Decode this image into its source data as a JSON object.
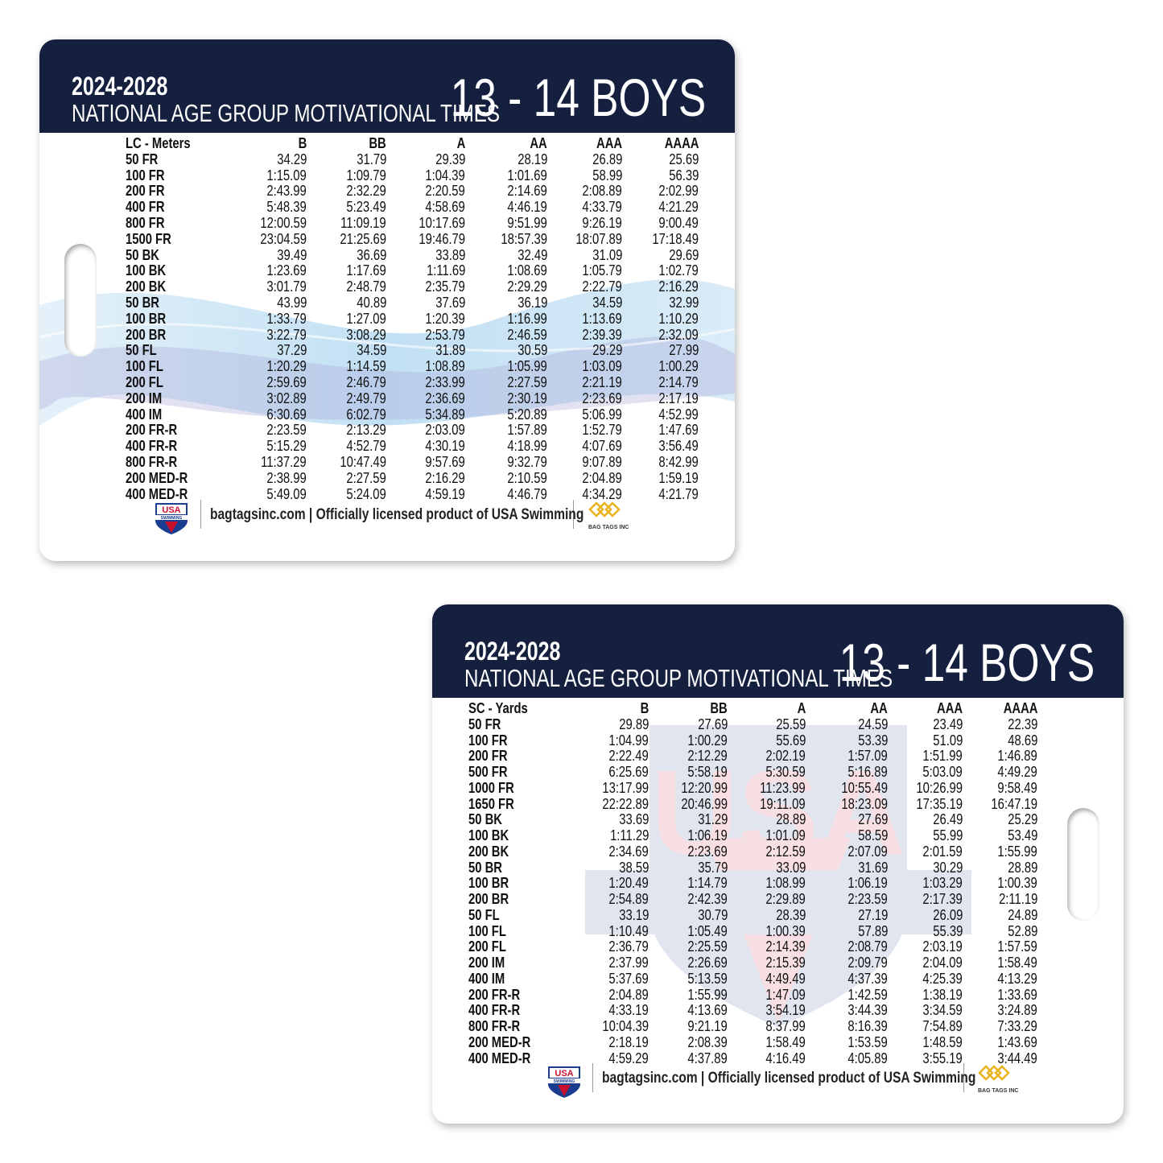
{
  "colors": {
    "header": "#15203f",
    "accent_gold": "#e9b21c",
    "usa_red": "#c8102e",
    "usa_blue": "#1b3d8f"
  },
  "cards": [
    {
      "years": "2024-2028",
      "subtitle": "NATIONAL AGE GROUP MOTIVATIONAL TIMES",
      "group": "13 - 14 BOYS",
      "course": "LC - Meters",
      "columns": [
        "B",
        "BB",
        "A",
        "AA",
        "AAA",
        "AAAA"
      ],
      "rows": [
        [
          "50 FR",
          "34.29",
          "31.79",
          "29.39",
          "28.19",
          "26.89",
          "25.69"
        ],
        [
          "100 FR",
          "1:15.09",
          "1:09.79",
          "1:04.39",
          "1:01.69",
          "58.99",
          "56.39"
        ],
        [
          "200 FR",
          "2:43.99",
          "2:32.29",
          "2:20.59",
          "2:14.69",
          "2:08.89",
          "2:02.99"
        ],
        [
          "400 FR",
          "5:48.39",
          "5:23.49",
          "4:58.69",
          "4:46.19",
          "4:33.79",
          "4:21.29"
        ],
        [
          "800 FR",
          "12:00.59",
          "11:09.19",
          "10:17.69",
          "9:51.99",
          "9:26.19",
          "9:00.49"
        ],
        [
          "1500 FR",
          "23:04.59",
          "21:25.69",
          "19:46.79",
          "18:57.39",
          "18:07.89",
          "17:18.49"
        ],
        [
          "50 BK",
          "39.49",
          "36.69",
          "33.89",
          "32.49",
          "31.09",
          "29.69"
        ],
        [
          "100 BK",
          "1:23.69",
          "1:17.69",
          "1:11.69",
          "1:08.69",
          "1:05.79",
          "1:02.79"
        ],
        [
          "200 BK",
          "3:01.79",
          "2:48.79",
          "2:35.79",
          "2:29.29",
          "2:22.79",
          "2:16.29"
        ],
        [
          "50 BR",
          "43.99",
          "40.89",
          "37.69",
          "36.19",
          "34.59",
          "32.99"
        ],
        [
          "100 BR",
          "1:33.79",
          "1:27.09",
          "1:20.39",
          "1:16.99",
          "1:13.69",
          "1:10.29"
        ],
        [
          "200 BR",
          "3:22.79",
          "3:08.29",
          "2:53.79",
          "2:46.59",
          "2:39.39",
          "2:32.09"
        ],
        [
          "50 FL",
          "37.29",
          "34.59",
          "31.89",
          "30.59",
          "29.29",
          "27.99"
        ],
        [
          "100 FL",
          "1:20.29",
          "1:14.59",
          "1:08.89",
          "1:05.99",
          "1:03.09",
          "1:00.29"
        ],
        [
          "200 FL",
          "2:59.69",
          "2:46.79",
          "2:33.99",
          "2:27.59",
          "2:21.19",
          "2:14.79"
        ],
        [
          "200 IM",
          "3:02.89",
          "2:49.79",
          "2:36.69",
          "2:30.19",
          "2:23.69",
          "2:17.19"
        ],
        [
          "400 IM",
          "6:30.69",
          "6:02.79",
          "5:34.89",
          "5:20.89",
          "5:06.99",
          "4:52.99"
        ],
        [
          "200 FR-R",
          "2:23.59",
          "2:13.29",
          "2:03.09",
          "1:57.89",
          "1:52.79",
          "1:47.69"
        ],
        [
          "400 FR-R",
          "5:15.29",
          "4:52.79",
          "4:30.19",
          "4:18.99",
          "4:07.69",
          "3:56.49"
        ],
        [
          "800 FR-R",
          "11:37.29",
          "10:47.49",
          "9:57.69",
          "9:32.79",
          "9:07.89",
          "8:42.99"
        ],
        [
          "200 MED-R",
          "2:38.99",
          "2:27.59",
          "2:16.29",
          "2:10.59",
          "2:04.89",
          "1:59.19"
        ],
        [
          "400 MED-R",
          "5:49.09",
          "5:24.09",
          "4:59.19",
          "4:46.79",
          "4:34.29",
          "4:21.79"
        ]
      ],
      "footer": "bagtagsinc.com | Officially licensed product of USA Swimming",
      "usa_logo_text": "USA SWIMMING",
      "brand_logo_text": "BAG TAGS INC"
    },
    {
      "years": "2024-2028",
      "subtitle": "NATIONAL AGE GROUP MOTIVATIONAL TIMES",
      "group": "13 - 14 BOYS",
      "course": "SC - Yards",
      "columns": [
        "B",
        "BB",
        "A",
        "AA",
        "AAA",
        "AAAA"
      ],
      "rows": [
        [
          "50 FR",
          "29.89",
          "27.69",
          "25.59",
          "24.59",
          "23.49",
          "22.39"
        ],
        [
          "100 FR",
          "1:04.99",
          "1:00.29",
          "55.69",
          "53.39",
          "51.09",
          "48.69"
        ],
        [
          "200 FR",
          "2:22.49",
          "2:12.29",
          "2:02.19",
          "1:57.09",
          "1:51.99",
          "1:46.89"
        ],
        [
          "500 FR",
          "6:25.69",
          "5:58.19",
          "5:30.59",
          "5:16.89",
          "5:03.09",
          "4:49.29"
        ],
        [
          "1000 FR",
          "13:17.99",
          "12:20.99",
          "11:23.99",
          "10:55.49",
          "10:26.99",
          "9:58.49"
        ],
        [
          "1650 FR",
          "22:22.89",
          "20:46.99",
          "19:11.09",
          "18:23.09",
          "17:35.19",
          "16:47.19"
        ],
        [
          "50 BK",
          "33.69",
          "31.29",
          "28.89",
          "27.69",
          "26.49",
          "25.29"
        ],
        [
          "100 BK",
          "1:11.29",
          "1:06.19",
          "1:01.09",
          "58.59",
          "55.99",
          "53.49"
        ],
        [
          "200 BK",
          "2:34.69",
          "2:23.69",
          "2:12.59",
          "2:07.09",
          "2:01.59",
          "1:55.99"
        ],
        [
          "50 BR",
          "38.59",
          "35.79",
          "33.09",
          "31.69",
          "30.29",
          "28.89"
        ],
        [
          "100 BR",
          "1:20.49",
          "1:14.79",
          "1:08.99",
          "1:06.19",
          "1:03.29",
          "1:00.39"
        ],
        [
          "200 BR",
          "2:54.89",
          "2:42.39",
          "2:29.89",
          "2:23.59",
          "2:17.39",
          "2:11.19"
        ],
        [
          "50 FL",
          "33.19",
          "30.79",
          "28.39",
          "27.19",
          "26.09",
          "24.89"
        ],
        [
          "100 FL",
          "1:10.49",
          "1:05.49",
          "1:00.39",
          "57.89",
          "55.39",
          "52.89"
        ],
        [
          "200 FL",
          "2:36.79",
          "2:25.59",
          "2:14.39",
          "2:08.79",
          "2:03.19",
          "1:57.59"
        ],
        [
          "200 IM",
          "2:37.99",
          "2:26.69",
          "2:15.39",
          "2:09.79",
          "2:04.09",
          "1:58.49"
        ],
        [
          "400 IM",
          "5:37.69",
          "5:13.59",
          "4:49.49",
          "4:37.39",
          "4:25.39",
          "4:13.29"
        ],
        [
          "200 FR-R",
          "2:04.89",
          "1:55.99",
          "1:47.09",
          "1:42.59",
          "1:38.19",
          "1:33.69"
        ],
        [
          "400 FR-R",
          "4:33.19",
          "4:13.69",
          "3:54.19",
          "3:44.39",
          "3:34.59",
          "3:24.89"
        ],
        [
          "800 FR-R",
          "10:04.39",
          "9:21.19",
          "8:37.99",
          "8:16.39",
          "7:54.89",
          "7:33.29"
        ],
        [
          "200 MED-R",
          "2:18.19",
          "2:08.39",
          "1:58.49",
          "1:53.59",
          "1:48.59",
          "1:43.69"
        ],
        [
          "400 MED-R",
          "4:59.29",
          "4:37.89",
          "4:16.49",
          "4:05.89",
          "3:55.19",
          "3:44.49"
        ]
      ],
      "footer": "bagtagsinc.com | Officially licensed product of USA Swimming",
      "usa_logo_text": "USA SWIMMING",
      "brand_logo_text": "BAG TAGS INC"
    }
  ]
}
